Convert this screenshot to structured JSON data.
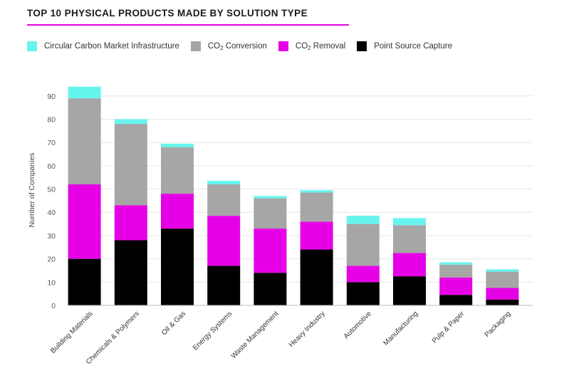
{
  "title": "TOP 10 PHYSICAL PRODUCTS MADE BY SOLUTION TYPE",
  "colors": {
    "accent_rule": "#e600e6",
    "circular": "#66f5ee",
    "conversion": "#a6a6a6",
    "removal": "#e600e6",
    "point_source": "#000000",
    "grid": "#e6e6e6",
    "axis_text": "#555555"
  },
  "legend": [
    {
      "key": "circular",
      "label": "Circular Carbon Market Infrastructure",
      "label_pre": "Circular Carbon Market Infrastructure",
      "label_sub": "",
      "label_post": ""
    },
    {
      "key": "conversion",
      "label": "CO2 Conversion",
      "label_pre": "CO",
      "label_sub": "2",
      "label_post": " Conversion"
    },
    {
      "key": "removal",
      "label": "CO2 Removal",
      "label_pre": "CO",
      "label_sub": "2",
      "label_post": " Removal"
    },
    {
      "key": "point_source",
      "label": "Point Source Capture",
      "label_pre": "Point Source Capture",
      "label_sub": "",
      "label_post": ""
    }
  ],
  "chart_data": {
    "type": "bar",
    "stacked": true,
    "title": "TOP 10 PHYSICAL PRODUCTS MADE BY SOLUTION TYPE",
    "xlabel": "",
    "ylabel": "Number of Companies",
    "ylim": [
      0,
      93
    ],
    "yticks": [
      0,
      10,
      20,
      30,
      40,
      50,
      60,
      70,
      80,
      90
    ],
    "grid": true,
    "legend_position": "top-left",
    "categories": [
      "Building Materials",
      "Chemicals & Polymers",
      "Oil & Gas",
      "Energy Systems",
      "Waste Management",
      "Heavy Industry",
      "Automotive",
      "Manufacturing",
      "Pulp & Paper",
      "Packaging"
    ],
    "series": [
      {
        "name": "Point Source Capture",
        "color": "#000000",
        "values": [
          20,
          28,
          33,
          17,
          14,
          24,
          10,
          12.5,
          4.5,
          2.5
        ]
      },
      {
        "name": "CO2 Removal",
        "color": "#e600e6",
        "values": [
          32,
          15,
          15,
          21.5,
          19,
          12,
          7,
          10,
          7.5,
          5
        ]
      },
      {
        "name": "CO2 Conversion",
        "color": "#a6a6a6",
        "values": [
          37,
          35,
          20,
          13.5,
          13,
          12.5,
          18,
          12,
          5.5,
          7
        ]
      },
      {
        "name": "Circular Carbon Market Infrastructure",
        "color": "#66f5ee",
        "values": [
          5,
          2,
          1.5,
          1.5,
          1,
          1,
          3.5,
          3,
          1,
          1
        ]
      }
    ]
  }
}
